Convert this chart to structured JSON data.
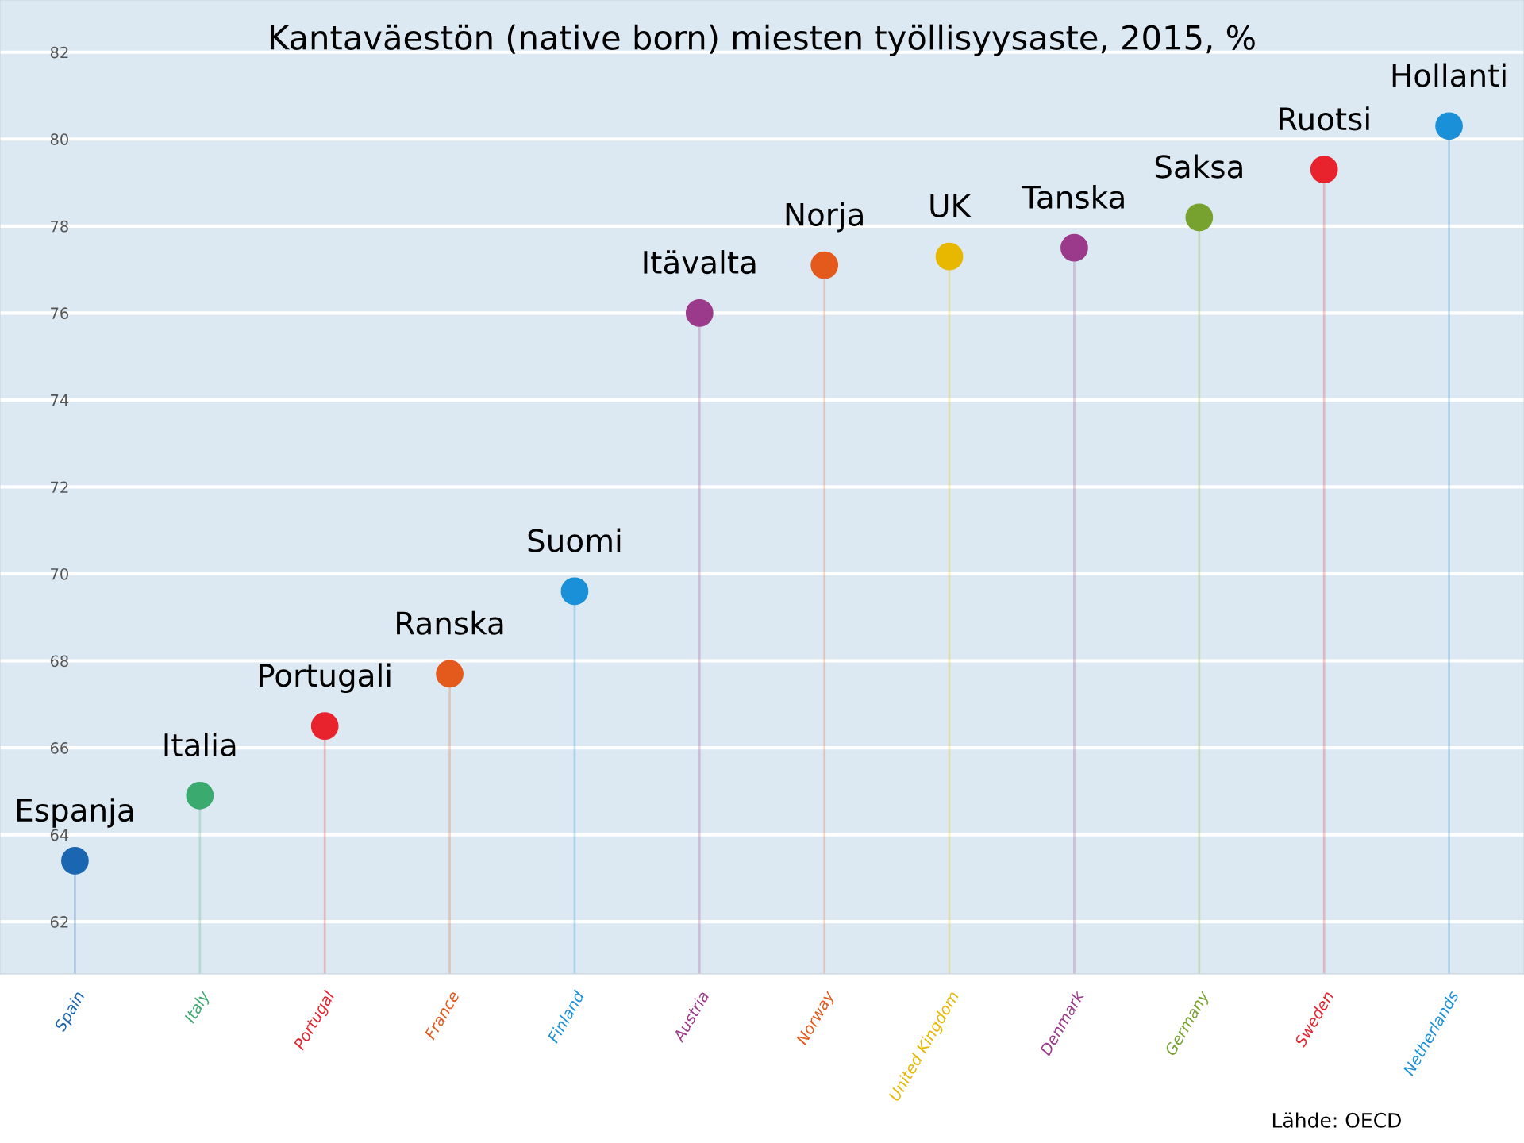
{
  "chart_data": {
    "type": "lollipop",
    "title": "Kantaväestön (native born) miesten työllisyysaste, 2015, %",
    "categories": [
      "Spain",
      "Italy",
      "Portugal",
      "France",
      "Finland",
      "Austria",
      "Norway",
      "United Kingdom",
      "Denmark",
      "Germany",
      "Sweden",
      "Netherlands"
    ],
    "values": [
      63.4,
      64.9,
      66.5,
      67.7,
      69.6,
      76.0,
      77.1,
      77.3,
      77.5,
      78.2,
      79.3,
      80.3
    ],
    "colors": [
      "#1a66b0",
      "#3aaa6e",
      "#e8232e",
      "#e35a1c",
      "#1a90d8",
      "#9b3a8a",
      "#e35a1c",
      "#e8b800",
      "#9b3a8a",
      "#78a22f",
      "#e8232e",
      "#1a90d8"
    ],
    "ylim": [
      60.8,
      83.2
    ],
    "yticks": [
      62,
      64,
      66,
      68,
      70,
      72,
      74,
      76,
      78,
      80,
      82
    ],
    "grid": "y",
    "marker": "circle",
    "annotations": [
      {
        "text": "Espanja",
        "x": "Spain",
        "y": 63.4
      },
      {
        "text": "Italia",
        "x": "Italy",
        "y": 64.9
      },
      {
        "text": "Portugali",
        "x": "Portugal",
        "y": 66.5
      },
      {
        "text": "Ranska",
        "x": "France",
        "y": 67.7
      },
      {
        "text": "Suomi",
        "x": "Finland",
        "y": 69.6
      },
      {
        "text": "Itävalta",
        "x": "Austria",
        "y": 76.0
      },
      {
        "text": "Norja",
        "x": "Norway",
        "y": 77.1
      },
      {
        "text": "UK",
        "x": "United Kingdom",
        "y": 77.3
      },
      {
        "text": "Tanska",
        "x": "Denmark",
        "y": 77.5
      },
      {
        "text": "Saksa",
        "x": "Germany",
        "y": 78.2
      },
      {
        "text": "Ruotsi",
        "x": "Sweden",
        "y": 79.3
      },
      {
        "text": "Hollanti",
        "x": "Netherlands",
        "y": 80.3
      },
      "Lähde: OECD"
    ]
  }
}
